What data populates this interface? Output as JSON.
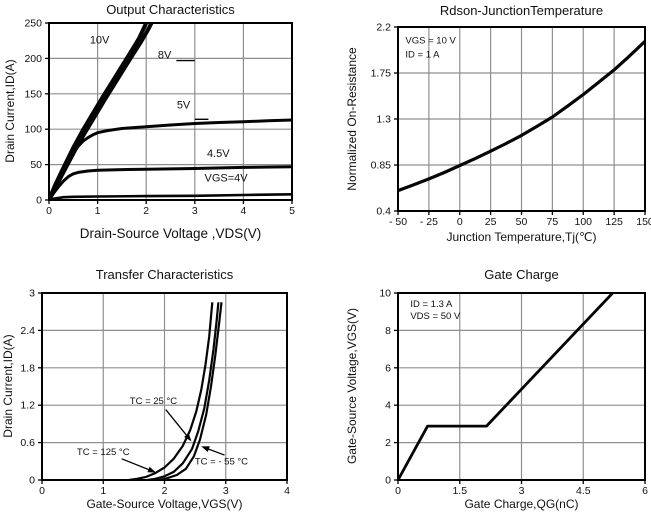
{
  "figure": {
    "background": "#ffffff",
    "grid_color": "#8f8f8f",
    "curve_color": "#050505",
    "border_color": "#000000"
  },
  "chart_data": [
    {
      "type": "line",
      "title": "Output Characteristics",
      "xlabel": "Drain-Source Voltage ,VDS(V)",
      "ylabel": "Drain Current,ID(A)",
      "xlim": [
        0,
        5
      ],
      "ylim": [
        0,
        250
      ],
      "grid": true,
      "xticks": [
        {
          "v": 0,
          "label": "0"
        },
        {
          "v": 1,
          "label": "1"
        },
        {
          "v": 2,
          "label": "2"
        },
        {
          "v": 3,
          "label": "3"
        },
        {
          "v": 4,
          "label": "4"
        },
        {
          "v": 5,
          "label": "5"
        }
      ],
      "yticks": [
        {
          "v": 0,
          "label": "0"
        },
        {
          "v": 50,
          "label": "50"
        },
        {
          "v": 100,
          "label": "100"
        },
        {
          "v": 150,
          "label": "150"
        },
        {
          "v": 200,
          "label": "200"
        },
        {
          "v": 250,
          "label": "250"
        }
      ],
      "series": [
        {
          "name": "VGS=10V",
          "width": 4,
          "points": [
            [
              0,
              0
            ],
            [
              0.12,
              20
            ],
            [
              0.3,
              46
            ],
            [
              0.5,
              74
            ],
            [
              0.7,
              99
            ],
            [
              0.9,
              122
            ],
            [
              1.1,
              145
            ],
            [
              1.3,
              167
            ],
            [
              1.5,
              189
            ],
            [
              1.7,
              211
            ],
            [
              1.85,
              228
            ],
            [
              2.0,
              250
            ],
            [
              2.08,
              262
            ]
          ]
        },
        {
          "name": "VGS=8V",
          "width": 4,
          "points": [
            [
              0,
              0
            ],
            [
              0.15,
              20
            ],
            [
              0.35,
              46
            ],
            [
              0.55,
              72
            ],
            [
              0.75,
              96
            ],
            [
              0.95,
              119
            ],
            [
              1.15,
              142
            ],
            [
              1.35,
              164
            ],
            [
              1.55,
              186
            ],
            [
              1.75,
              208
            ],
            [
              1.9,
              224
            ],
            [
              2.05,
              242
            ],
            [
              2.2,
              262
            ]
          ]
        },
        {
          "name": "VGS=5V",
          "width": 3,
          "points": [
            [
              0,
              0
            ],
            [
              0.1,
              14
            ],
            [
              0.2,
              28
            ],
            [
              0.3,
              42
            ],
            [
              0.4,
              55
            ],
            [
              0.5,
              66
            ],
            [
              0.6,
              76
            ],
            [
              0.7,
              83
            ],
            [
              0.8,
              88
            ],
            [
              0.9,
              92
            ],
            [
              1,
              95
            ],
            [
              1.2,
              98
            ],
            [
              1.5,
              101
            ],
            [
              2,
              103.5
            ],
            [
              2.5,
              106
            ],
            [
              3,
              108
            ],
            [
              3.5,
              109.5
            ],
            [
              4,
              110.5
            ],
            [
              4.5,
              112
            ],
            [
              5,
              113
            ]
          ]
        },
        {
          "name": "VGS=4.5V",
          "width": 3,
          "points": [
            [
              0,
              0
            ],
            [
              0.1,
              10
            ],
            [
              0.2,
              19
            ],
            [
              0.3,
              27
            ],
            [
              0.4,
              33
            ],
            [
              0.5,
              37
            ],
            [
              0.6,
              39
            ],
            [
              0.8,
              41
            ],
            [
              1,
              42
            ],
            [
              1.5,
              43
            ],
            [
              2,
              43.5
            ],
            [
              3,
              44.5
            ],
            [
              4,
              46
            ],
            [
              5,
              47
            ]
          ]
        },
        {
          "name": "VGS=4V",
          "width": 2.6,
          "points": [
            [
              0,
              0
            ],
            [
              0.1,
              2
            ],
            [
              0.3,
              4
            ],
            [
              0.5,
              4.5
            ],
            [
              1,
              5
            ],
            [
              2,
              5.5
            ],
            [
              3,
              6
            ],
            [
              4,
              7
            ],
            [
              5,
              8
            ]
          ]
        }
      ],
      "curve_labels": [
        {
          "text": "10V",
          "x": 0.84,
          "y": 221,
          "anchor": "start",
          "size": 11
        },
        {
          "text": "8V",
          "x": 2.24,
          "y": 200,
          "anchor": "start",
          "size": 11
        },
        {
          "text": "5V",
          "x": 2.63,
          "y": 129,
          "anchor": "start",
          "size": 11
        },
        {
          "text": "4.5V",
          "x": 3.25,
          "y": 61,
          "anchor": "start",
          "size": 11
        },
        {
          "text": "VGS=4V",
          "x": 3.2,
          "y": 26,
          "anchor": "start",
          "size": 11
        }
      ],
      "leader_lines": [
        {
          "x1": 2.62,
          "y1": 197,
          "x2": 3.0,
          "y2": 197
        },
        {
          "x1": 3.0,
          "y1": 114,
          "x2": 3.28,
          "y2": 114
        }
      ]
    },
    {
      "type": "line",
      "title": "Rdson-JunctionTemperature",
      "xlabel": "Junction Temperature,Tj(℃)",
      "ylabel": "Normalized On-Resistance",
      "xlim": [
        -50,
        150
      ],
      "ylim": [
        0.4,
        2.2
      ],
      "grid": true,
      "xticks": [
        {
          "v": -50,
          "label": "- 50"
        },
        {
          "v": -25,
          "label": "- 25"
        },
        {
          "v": 0,
          "label": "0"
        },
        {
          "v": 25,
          "label": "25"
        },
        {
          "v": 50,
          "label": "50"
        },
        {
          "v": 75,
          "label": "75"
        },
        {
          "v": 100,
          "label": "100"
        },
        {
          "v": 125,
          "label": "125"
        },
        {
          "v": 150,
          "label": "150"
        }
      ],
      "yticks": [
        {
          "v": 0.4,
          "label": "0.4"
        },
        {
          "v": 0.85,
          "label": "0.85"
        },
        {
          "v": 1.3,
          "label": "1.3"
        },
        {
          "v": 1.75,
          "label": "1.75"
        },
        {
          "v": 2.2,
          "label": "2.2"
        }
      ],
      "series": [
        {
          "name": "normalized-rdson-vs-tj",
          "width": 3.2,
          "points": [
            [
              -50,
              0.6
            ],
            [
              -37.5,
              0.655
            ],
            [
              -25,
              0.714
            ],
            [
              -12.5,
              0.777
            ],
            [
              0,
              0.845
            ],
            [
              12.5,
              0.913
            ],
            [
              25,
              0.985
            ],
            [
              37.5,
              1.06
            ],
            [
              50,
              1.14
            ],
            [
              62.5,
              1.228
            ],
            [
              75,
              1.32
            ],
            [
              87.5,
              1.428
            ],
            [
              100,
              1.54
            ],
            [
              112.5,
              1.66
            ],
            [
              125,
              1.78
            ],
            [
              137.5,
              1.917
            ],
            [
              150,
              2.06
            ]
          ]
        }
      ],
      "curve_labels": [
        {
          "text": "VGS = 10 V",
          "x": -44,
          "y": 2.04,
          "anchor": "start",
          "size": 9.5
        },
        {
          "text": "ID = 1 A",
          "x": -44,
          "y": 1.9,
          "anchor": "start",
          "size": 9.5
        }
      ],
      "leader_lines": []
    },
    {
      "type": "line",
      "title": "Transfer Characteristics",
      "xlabel": "Gate-Source Voltage,VGS(V)",
      "ylabel": "Drain Current,ID(A)",
      "xlim": [
        0,
        4
      ],
      "ylim": [
        0,
        3
      ],
      "grid": true,
      "xticks": [
        {
          "v": 0,
          "label": "0"
        },
        {
          "v": 1,
          "label": "1"
        },
        {
          "v": 2,
          "label": "2"
        },
        {
          "v": 3,
          "label": "3"
        },
        {
          "v": 4,
          "label": "4"
        }
      ],
      "yticks": [
        {
          "v": 0,
          "label": "0"
        },
        {
          "v": 0.6,
          "label": "0.6"
        },
        {
          "v": 1.2,
          "label": "1.2"
        },
        {
          "v": 1.8,
          "label": "1.8"
        },
        {
          "v": 2.4,
          "label": "2.4"
        },
        {
          "v": 3,
          "label": "3"
        }
      ],
      "series": [
        {
          "name": "TC=125C",
          "width": 2.2,
          "points": [
            [
              1.42,
              0
            ],
            [
              1.55,
              0.02
            ],
            [
              1.7,
              0.05
            ],
            [
              1.85,
              0.11
            ],
            [
              2.0,
              0.2
            ],
            [
              2.15,
              0.34
            ],
            [
              2.3,
              0.55
            ],
            [
              2.42,
              0.8
            ],
            [
              2.52,
              1.1
            ],
            [
              2.6,
              1.45
            ],
            [
              2.67,
              1.85
            ],
            [
              2.73,
              2.3
            ],
            [
              2.78,
              2.85
            ]
          ]
        },
        {
          "name": "TC=25C",
          "width": 2.2,
          "points": [
            [
              1.72,
              0
            ],
            [
              1.85,
              0.02
            ],
            [
              2.0,
              0.06
            ],
            [
              2.15,
              0.13
            ],
            [
              2.3,
              0.27
            ],
            [
              2.45,
              0.5
            ],
            [
              2.55,
              0.78
            ],
            [
              2.65,
              1.15
            ],
            [
              2.73,
              1.6
            ],
            [
              2.8,
              2.1
            ],
            [
              2.85,
              2.55
            ],
            [
              2.88,
              2.85
            ]
          ]
        },
        {
          "name": "TC=-55C",
          "width": 2.2,
          "points": [
            [
              1.92,
              0
            ],
            [
              2.05,
              0.03
            ],
            [
              2.2,
              0.08
            ],
            [
              2.35,
              0.18
            ],
            [
              2.48,
              0.38
            ],
            [
              2.58,
              0.65
            ],
            [
              2.68,
              1.05
            ],
            [
              2.76,
              1.5
            ],
            [
              2.83,
              2.0
            ],
            [
              2.89,
              2.5
            ],
            [
              2.93,
              2.85
            ]
          ]
        }
      ],
      "curve_labels": [
        {
          "text": "TC = 25 °C",
          "x": 1.82,
          "y": 1.22,
          "anchor": "middle",
          "size": 9.5
        },
        {
          "text": "TC = 125 °C",
          "x": 1.0,
          "y": 0.4,
          "anchor": "middle",
          "size": 9.5
        },
        {
          "text": "TC = - 55 °C",
          "x": 2.93,
          "y": 0.25,
          "anchor": "middle",
          "size": 9.5
        }
      ],
      "arrows": [
        {
          "x1": 2.02,
          "y1": 1.13,
          "x2": 2.44,
          "y2": 0.62
        },
        {
          "x1": 1.3,
          "y1": 0.34,
          "x2": 1.86,
          "y2": 0.12
        },
        {
          "x1": 2.98,
          "y1": 0.4,
          "x2": 2.6,
          "y2": 0.54
        }
      ],
      "leader_lines": []
    },
    {
      "type": "line",
      "title": "Gate Charge",
      "xlabel": "Gate Charge,QG(nC)",
      "ylabel": "Gate-Source Voltage,VGS(V)",
      "xlim": [
        0,
        6
      ],
      "ylim": [
        0,
        10
      ],
      "grid": true,
      "xticks": [
        {
          "v": 0,
          "label": "0"
        },
        {
          "v": 1.5,
          "label": "1.5"
        },
        {
          "v": 3,
          "label": "3"
        },
        {
          "v": 4.5,
          "label": "4.5"
        },
        {
          "v": 6,
          "label": "6"
        }
      ],
      "yticks": [
        {
          "v": 0,
          "label": "0"
        },
        {
          "v": 2,
          "label": "2"
        },
        {
          "v": 4,
          "label": "4"
        },
        {
          "v": 6,
          "label": "6"
        },
        {
          "v": 8,
          "label": "8"
        },
        {
          "v": 10,
          "label": "10"
        }
      ],
      "series": [
        {
          "name": "vgs-vs-qg",
          "width": 2.8,
          "points": [
            [
              0,
              0
            ],
            [
              0.72,
              2.88
            ],
            [
              2.15,
              2.88
            ],
            [
              5.3,
              10.2
            ]
          ]
        }
      ],
      "curve_labels": [
        {
          "text": "ID = 1.3 A",
          "x": 0.3,
          "y": 9.25,
          "anchor": "start",
          "size": 9.5
        },
        {
          "text": "VDS = 50 V",
          "x": 0.3,
          "y": 8.6,
          "anchor": "start",
          "size": 9.5
        }
      ],
      "leader_lines": []
    }
  ]
}
